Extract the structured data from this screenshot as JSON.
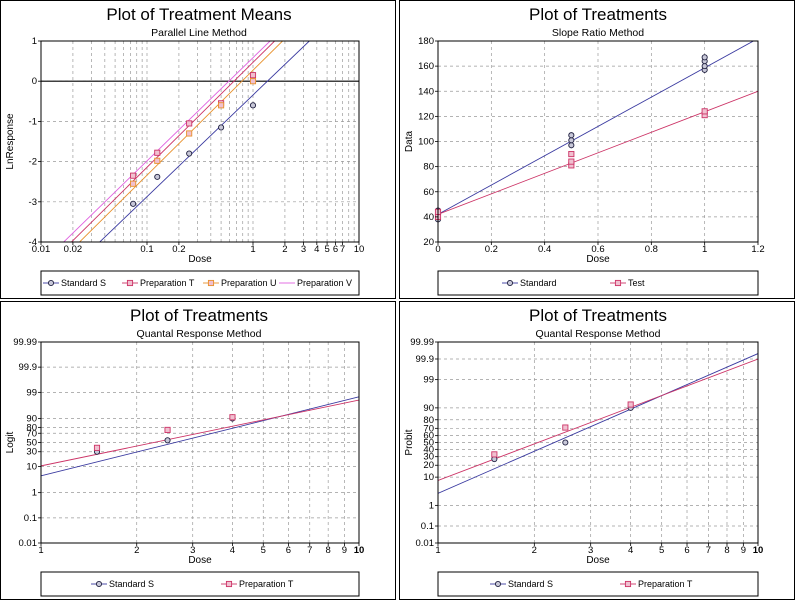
{
  "chart_data": [
    {
      "type": "scatter",
      "title": "Plot of Treatment Means",
      "subtitle": "Parallel Line Method",
      "xlabel": "Dose",
      "ylabel": "LnResponse",
      "xscale": "log",
      "xlim": [
        0.01,
        10
      ],
      "ylim": [
        -4,
        1
      ],
      "xticks": [
        0.01,
        0.02,
        0.1,
        0.2,
        1,
        2,
        3,
        4,
        5,
        6,
        7,
        10
      ],
      "xtick_labels": [
        "0.01",
        "0.02",
        "0.1",
        "0.2",
        "1",
        "2",
        "3",
        "4",
        "5",
        "6",
        "7",
        "10"
      ],
      "yticks": [
        -4,
        -3,
        -2,
        -1,
        0,
        1
      ],
      "ytick_labels": [
        "-4",
        "-3",
        "-2",
        "-1",
        "0",
        "1"
      ],
      "grid": true,
      "reference_line_y": 0,
      "legend_position": "bottom",
      "series": [
        {
          "name": "Standard S",
          "marker": "circle",
          "color": "#3a3aa0",
          "x": [
            0.074,
            0.125,
            0.25,
            0.5,
            1.0
          ],
          "y": [
            -3.05,
            -2.38,
            -1.8,
            -1.15,
            -0.6
          ],
          "fit": [
            [
              0.01,
              -5.4
            ],
            [
              3.4,
              1.0
            ]
          ]
        },
        {
          "name": "Preparation T",
          "marker": "square",
          "color": "#cc3366",
          "x": [
            0.074,
            0.125,
            0.25,
            0.5,
            1.0
          ],
          "y": [
            -2.35,
            -1.78,
            -1.05,
            -0.55,
            0.15
          ],
          "fit": [
            [
              0.01,
              -4.75
            ],
            [
              1.6,
              1.0
            ]
          ]
        },
        {
          "name": "Preparation U",
          "marker": "square",
          "color": "#e8902a",
          "x": [
            0.074,
            0.125,
            0.25,
            0.5,
            1.0
          ],
          "y": [
            -2.55,
            -1.98,
            -1.3,
            -0.6,
            0.0
          ],
          "fit": [
            [
              0.01,
              -4.95
            ],
            [
              1.9,
              1.0
            ]
          ]
        },
        {
          "name": "Preparation V",
          "marker": "line",
          "color": "#e060e0",
          "x": [],
          "y": [],
          "fit": [
            [
              0.01,
              -4.55
            ],
            [
              1.45,
              1.0
            ]
          ]
        }
      ]
    },
    {
      "type": "scatter",
      "title": "Plot of Treatments",
      "subtitle": "Slope Ratio Method",
      "xlabel": "Dose",
      "ylabel": "Data",
      "xscale": "linear",
      "xlim": [
        0,
        1.2
      ],
      "ylim": [
        20,
        180
      ],
      "xticks": [
        0,
        0.2,
        0.4,
        0.6,
        0.8,
        1,
        1.2
      ],
      "xtick_labels": [
        "0",
        "0.2",
        "0.4",
        "0.6",
        "0.8",
        "1",
        "1.2"
      ],
      "yticks": [
        20,
        40,
        60,
        80,
        100,
        120,
        140,
        160,
        180
      ],
      "ytick_labels": [
        "20",
        "40",
        "60",
        "80",
        "100",
        "120",
        "140",
        "160",
        "180"
      ],
      "grid": true,
      "legend_position": "bottom",
      "series": [
        {
          "name": "Standard",
          "marker": "circle",
          "color": "#3a3aa0",
          "x": [
            0,
            0,
            0,
            0.5,
            0.5,
            0.5,
            1.0,
            1.0,
            1.0,
            1.0
          ],
          "y": [
            38,
            42,
            45,
            97,
            101,
            105,
            157,
            160,
            164,
            167
          ],
          "fit": [
            [
              0,
              42
            ],
            [
              1.2,
              182
            ]
          ]
        },
        {
          "name": "Test",
          "marker": "square",
          "color": "#cc3366",
          "x": [
            0,
            0,
            0.5,
            0.5,
            0.5,
            1.0,
            1.0
          ],
          "y": [
            40,
            44,
            81,
            84,
            90,
            121,
            124
          ],
          "fit": [
            [
              0,
              42
            ],
            [
              1.2,
              140
            ]
          ]
        }
      ]
    },
    {
      "type": "scatter",
      "title": "Plot of Treatments",
      "subtitle": "Quantal Response Method",
      "xlabel": "Dose",
      "ylabel": "Logit",
      "xscale": "log",
      "yscale": "logit",
      "xlim": [
        1,
        10
      ],
      "ylim": [
        0.01,
        99.99
      ],
      "xticks": [
        1,
        2,
        3,
        4,
        5,
        6,
        7,
        8,
        9,
        10
      ],
      "xtick_labels": [
        "1",
        "2",
        "3",
        "4",
        "5",
        "6",
        "7",
        "8",
        "9",
        "10"
      ],
      "yticks": [
        0.01,
        0.1,
        1,
        10,
        30,
        50,
        70,
        80,
        90,
        99,
        99.9,
        99.99
      ],
      "ytick_labels": [
        "0.01",
        "0.1",
        "1",
        "10",
        "30",
        "50",
        "70",
        "80",
        "90",
        "99",
        "99.9",
        "99.99"
      ],
      "grid": true,
      "legend_position": "bottom",
      "series": [
        {
          "name": "Standard S",
          "marker": "circle",
          "color": "#3a3aa0",
          "x": [
            1.5,
            2.5,
            4.0
          ],
          "y": [
            30,
            55,
            90
          ],
          "fit": [
            [
              1,
              4.5
            ],
            [
              10,
              98.5
            ]
          ]
        },
        {
          "name": "Preparation T",
          "marker": "square",
          "color": "#cc3366",
          "x": [
            1.5,
            2.5,
            4.0
          ],
          "y": [
            38,
            76,
            91
          ],
          "fit": [
            [
              1,
              10.5
            ],
            [
              10,
              98
            ]
          ]
        }
      ]
    },
    {
      "type": "scatter",
      "title": "Plot of Treatments",
      "subtitle": "Quantal Response Method",
      "xlabel": "Dose",
      "ylabel": "Probit",
      "xscale": "log",
      "yscale": "probit",
      "xlim": [
        1,
        10
      ],
      "ylim": [
        0.01,
        99.99
      ],
      "xticks": [
        1,
        2,
        3,
        4,
        5,
        6,
        7,
        8,
        9,
        10
      ],
      "xtick_labels": [
        "1",
        "2",
        "3",
        "4",
        "5",
        "6",
        "7",
        "8",
        "9",
        "10"
      ],
      "yticks": [
        0.01,
        0.1,
        1,
        10,
        20,
        30,
        40,
        50,
        60,
        70,
        80,
        90,
        99,
        99.9,
        99.99
      ],
      "ytick_labels": [
        "0.01",
        "0.1",
        "1",
        "10",
        "20",
        "30",
        "40",
        "50",
        "60",
        "70",
        "80",
        "90",
        "99",
        "99.9",
        "99.99"
      ],
      "grid": true,
      "legend_position": "bottom",
      "series": [
        {
          "name": "Standard S",
          "marker": "circle",
          "color": "#3a3aa0",
          "x": [
            1.5,
            2.5,
            4.0
          ],
          "y": [
            27,
            50,
            90
          ],
          "fit": [
            [
              1,
              3
            ],
            [
              10,
              99.95
            ]
          ]
        },
        {
          "name": "Preparation T",
          "marker": "square",
          "color": "#cc3366",
          "x": [
            1.5,
            2.5,
            4.0
          ],
          "y": [
            33,
            71,
            92
          ],
          "fit": [
            [
              1,
              8
            ],
            [
              10,
              99.9
            ]
          ]
        }
      ]
    }
  ]
}
